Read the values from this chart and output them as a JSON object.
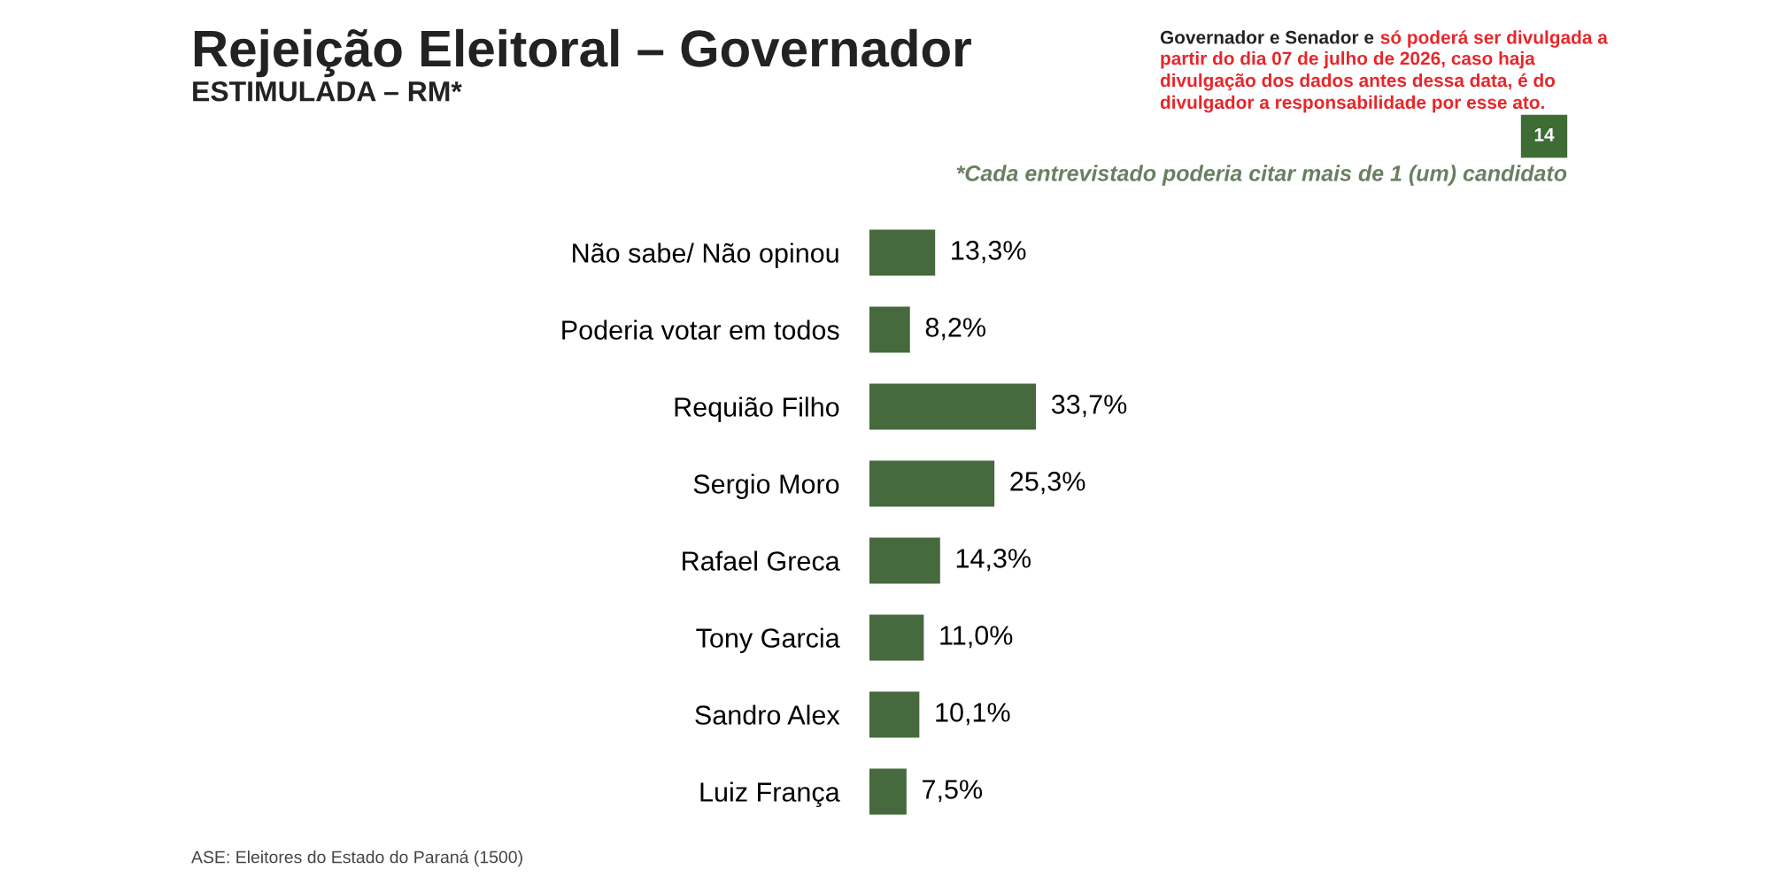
{
  "chart_data": {
    "type": "bar",
    "orientation": "horizontal",
    "title": "Rejeição Eleitoral – Governador",
    "subtitle": "ESTIMULADA – RM*",
    "categories": [
      "Não sabe/ Não opinou",
      "Poderia votar em todos",
      "Requião Filho",
      "Sergio Moro",
      "Rafael Greca",
      "Tony Garcia",
      "Sandro Alex",
      "Luiz França"
    ],
    "values": [
      13.3,
      8.2,
      33.7,
      25.3,
      14.3,
      11.0,
      10.1,
      7.5
    ],
    "value_labels": [
      "13,3%",
      "8,2%",
      "33,7%",
      "25,3%",
      "14,3%",
      "11,0%",
      "10,1%",
      "7,5%"
    ],
    "color": "#46693d",
    "tick_labels": "y",
    "grid": false,
    "legend": false,
    "annotations": [
      "Governador e Senador e",
      "só poderá ser divulgada a\npartir do dia 07 de julho de 2026, caso haja\ndivulgação dos dados antes dessa data, é do\ndivulgador a responsabilidade por esse ato.",
      "14",
      "*Cada entrevistado poderia citar mais de 1 (um) candidato",
      "ASE: Eleitores do Estado do Paraná (1500)"
    ]
  }
}
